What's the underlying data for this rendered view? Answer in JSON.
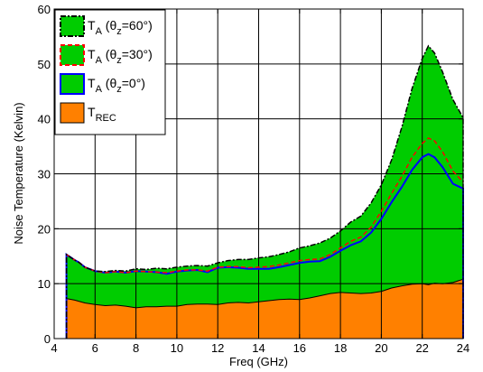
{
  "chart_data": {
    "type": "area",
    "title": "",
    "xlabel": "Freq (GHz)",
    "ylabel": "Noise Temperature (Kelvin)",
    "xlim": [
      4,
      24
    ],
    "ylim": [
      0,
      60
    ],
    "xticks": [
      4,
      6,
      8,
      10,
      12,
      14,
      16,
      18,
      20,
      22,
      24
    ],
    "yticks": [
      0,
      10,
      20,
      30,
      40,
      50,
      60
    ],
    "grid": true,
    "legend_position": "top-left",
    "colors": {
      "green": "#00cc00",
      "orange": "#ff8000",
      "blue": "#0000ff",
      "red": "#ff0000",
      "black": "#000000"
    },
    "legend": [
      {
        "main": "T",
        "sub": "A",
        "rest": " (θ",
        "sub2": "z",
        "rest2": "=60°)",
        "swatch": "green",
        "border": "black",
        "dash": "dashdot"
      },
      {
        "main": "T",
        "sub": "A",
        "rest": " (θ",
        "sub2": "z",
        "rest2": "=30°)",
        "swatch": "green",
        "border": "red",
        "dash": "dash"
      },
      {
        "main": "T",
        "sub": "A",
        "rest": " (θ",
        "sub2": "z",
        "rest2": "=0°)",
        "swatch": "green",
        "border": "blue",
        "dash": "solid"
      },
      {
        "main": "T",
        "sub": "REC",
        "rest": "",
        "sub2": "",
        "rest2": "",
        "swatch": "orange",
        "border": "black",
        "dash": "solid"
      }
    ],
    "x": [
      4.6,
      5,
      5.2,
      5.5,
      6,
      6.5,
      7,
      7.5,
      8,
      8.5,
      9,
      9.5,
      10,
      10.5,
      11,
      11.5,
      12,
      12.5,
      13,
      13.5,
      14,
      14.5,
      15,
      15.5,
      16,
      16.5,
      17,
      17.5,
      18,
      18.5,
      19,
      19.5,
      20,
      20.5,
      21,
      21.5,
      22,
      22.3,
      22.6,
      23,
      23.5,
      24
    ],
    "series": [
      {
        "name": "T_A (θz=60°)",
        "values": [
          15.3,
          14.3,
          13.9,
          13.0,
          12.3,
          12.2,
          12.4,
          12.3,
          12.7,
          12.6,
          12.8,
          12.7,
          13.0,
          13.2,
          13.3,
          13.2,
          13.8,
          14.2,
          14.4,
          14.4,
          14.7,
          14.9,
          15.3,
          15.8,
          16.5,
          16.9,
          17.4,
          18.3,
          19.6,
          21.2,
          22.3,
          24.7,
          28.0,
          32.5,
          38.5,
          45.5,
          51.0,
          53.3,
          52.0,
          48.5,
          43.5,
          40.2
        ]
      },
      {
        "name": "T_A (θz=30°)",
        "values": [
          15.3,
          14.3,
          13.9,
          13.0,
          12.3,
          12.0,
          12.2,
          12.0,
          12.3,
          12.2,
          12.1,
          12.0,
          12.3,
          12.5,
          12.5,
          12.3,
          13.0,
          13.1,
          13.1,
          12.9,
          13.0,
          13.1,
          13.4,
          13.8,
          14.2,
          14.4,
          14.5,
          15.3,
          16.5,
          17.7,
          18.5,
          20.3,
          23.2,
          26.4,
          29.5,
          33.0,
          35.5,
          36.5,
          36.0,
          34.0,
          30.5,
          28.5
        ]
      },
      {
        "name": "T_A (θz=0°)",
        "values": [
          15.3,
          14.3,
          13.9,
          13.0,
          12.3,
          12.0,
          12.2,
          12.0,
          12.3,
          12.2,
          12.1,
          11.8,
          12.2,
          12.4,
          12.5,
          12.1,
          12.9,
          13.0,
          12.9,
          12.7,
          12.7,
          12.7,
          13.0,
          13.4,
          13.8,
          14.0,
          14.1,
          14.9,
          16.0,
          17.0,
          17.7,
          19.3,
          21.8,
          24.8,
          27.6,
          30.7,
          33.0,
          33.6,
          33.0,
          31.2,
          28.2,
          27.3
        ]
      },
      {
        "name": "T_REC",
        "values": [
          7.3,
          7.0,
          6.8,
          6.5,
          6.2,
          6.0,
          6.1,
          5.9,
          5.6,
          5.8,
          5.8,
          5.9,
          5.9,
          6.2,
          6.3,
          6.3,
          6.2,
          6.5,
          6.6,
          6.5,
          6.7,
          6.9,
          7.1,
          7.2,
          7.1,
          7.4,
          7.8,
          8.2,
          8.4,
          8.3,
          8.2,
          8.3,
          8.6,
          9.2,
          9.6,
          9.9,
          10.0,
          9.8,
          10.1,
          10.0,
          10.2,
          10.8
        ]
      }
    ]
  }
}
